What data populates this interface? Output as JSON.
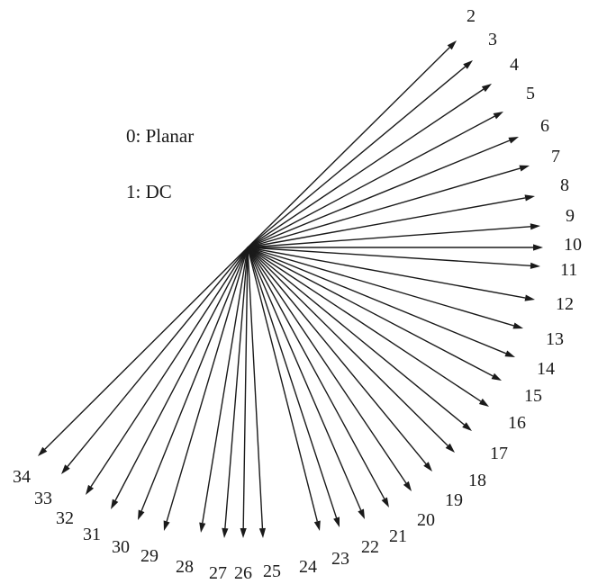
{
  "legend": {
    "planar": "0: Planar",
    "dc": "1: DC"
  },
  "modes": [
    {
      "id": "2"
    },
    {
      "id": "3"
    },
    {
      "id": "4"
    },
    {
      "id": "5"
    },
    {
      "id": "6"
    },
    {
      "id": "7"
    },
    {
      "id": "8"
    },
    {
      "id": "9"
    },
    {
      "id": "10"
    },
    {
      "id": "11"
    },
    {
      "id": "12"
    },
    {
      "id": "13"
    },
    {
      "id": "14"
    },
    {
      "id": "15"
    },
    {
      "id": "16"
    },
    {
      "id": "17"
    },
    {
      "id": "18"
    },
    {
      "id": "19"
    },
    {
      "id": "20"
    },
    {
      "id": "21"
    },
    {
      "id": "22"
    },
    {
      "id": "23"
    },
    {
      "id": "24"
    },
    {
      "id": "25"
    },
    {
      "id": "26"
    },
    {
      "id": "27"
    },
    {
      "id": "28"
    },
    {
      "id": "29"
    },
    {
      "id": "30"
    },
    {
      "id": "31"
    },
    {
      "id": "32"
    },
    {
      "id": "33"
    },
    {
      "id": "34"
    }
  ]
}
